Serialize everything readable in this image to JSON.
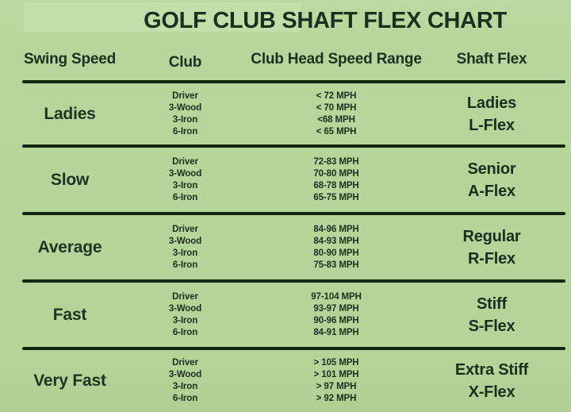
{
  "chart_data": {
    "type": "table",
    "title": "GOLF CLUB SHAFT FLEX CHART",
    "columns": [
      "Swing Speed",
      "Club",
      "Club Head Speed Range",
      "Shaft Flex"
    ],
    "rows": [
      {
        "swing_speed": "Ladies",
        "clubs": [
          "Driver",
          "3-Wood",
          "3-Iron",
          "6-Iron"
        ],
        "speed_ranges": [
          "< 72 MPH",
          "< 70 MPH",
          "<68 MPH",
          "< 65 MPH"
        ],
        "shaft_flex": [
          "Ladies",
          "L-Flex"
        ]
      },
      {
        "swing_speed": "Slow",
        "clubs": [
          "Driver",
          "3-Wood",
          "3-Iron",
          "6-Iron"
        ],
        "speed_ranges": [
          "72-83 MPH",
          "70-80 MPH",
          "68-78 MPH",
          "65-75 MPH"
        ],
        "shaft_flex": [
          "Senior",
          "A-Flex"
        ]
      },
      {
        "swing_speed": "Average",
        "clubs": [
          "Driver",
          "3-Wood",
          "3-Iron",
          "6-Iron"
        ],
        "speed_ranges": [
          "84-96 MPH",
          "84-93 MPH",
          "80-90 MPH",
          "75-83 MPH"
        ],
        "shaft_flex": [
          "Regular",
          "R-Flex"
        ]
      },
      {
        "swing_speed": "Fast",
        "clubs": [
          "Driver",
          "3-Wood",
          "3-Iron",
          "6-Iron"
        ],
        "speed_ranges": [
          "97-104 MPH",
          "93-97 MPH",
          "90-96 MPH",
          "84-91 MPH"
        ],
        "shaft_flex": [
          "Stiff",
          "S-Flex"
        ]
      },
      {
        "swing_speed": "Very Fast",
        "clubs": [
          "Driver",
          "3-Wood",
          "3-Iron",
          "6-Iron"
        ],
        "speed_ranges": [
          "> 105 MPH",
          "> 101 MPH",
          "> 97 MPH",
          "> 92 MPH"
        ],
        "shaft_flex": [
          "Extra Stiff",
          "X-Flex"
        ]
      }
    ]
  },
  "colors": {
    "background": "#b6d59b",
    "text": "#1e3321",
    "divider": "#132610",
    "title_highlight": "#c7e0ad"
  }
}
